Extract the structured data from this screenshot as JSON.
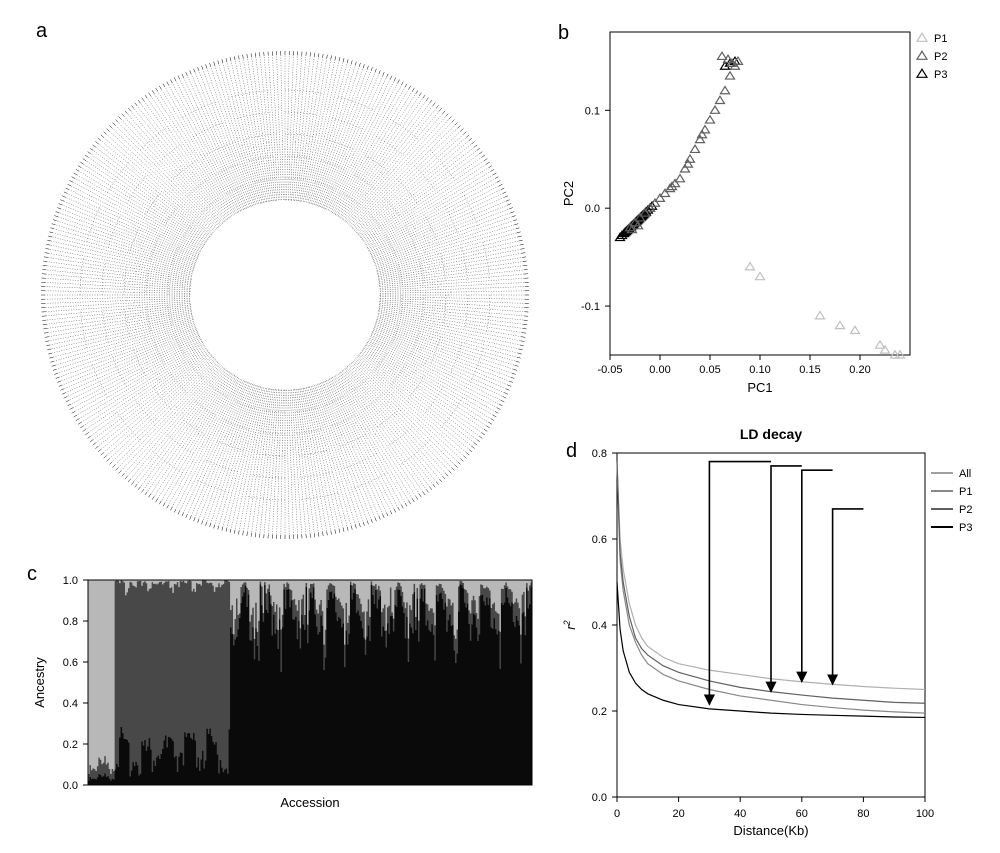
{
  "labels": {
    "a": "a",
    "b": "b",
    "c": "c",
    "d": "d"
  },
  "panel_a": {
    "type": "circular-tree",
    "background_color": "#ffffff",
    "line_color": "#000000",
    "tips": 360
  },
  "panel_b": {
    "type": "scatter",
    "title": "",
    "xlabel": "PC1",
    "ylabel": "PC2",
    "xlim": [
      -0.05,
      0.25
    ],
    "ylim": [
      -0.15,
      0.18
    ],
    "xticks": [
      -0.05,
      0.0,
      0.05,
      0.1,
      0.15,
      0.2
    ],
    "yticks": [
      -0.1,
      0.0,
      0.1
    ],
    "background_color": "#ffffff",
    "border_color": "#000000",
    "marker": "triangle",
    "marker_size": 9,
    "legend": {
      "items": [
        "P1",
        "P2",
        "P3"
      ],
      "colors": [
        "#c0c0c0",
        "#606060",
        "#000000"
      ],
      "position": "right"
    },
    "series": {
      "P1": {
        "color": "#c0c0c0",
        "points": [
          [
            0.09,
            -0.06
          ],
          [
            0.1,
            -0.07
          ],
          [
            0.16,
            -0.11
          ],
          [
            0.18,
            -0.12
          ],
          [
            0.195,
            -0.125
          ],
          [
            0.22,
            -0.14
          ],
          [
            0.225,
            -0.145
          ],
          [
            0.235,
            -0.15
          ],
          [
            0.24,
            -0.15
          ]
        ]
      },
      "P2": {
        "color": "#606060",
        "points": [
          [
            -0.03,
            -0.02
          ],
          [
            -0.025,
            -0.015
          ],
          [
            -0.02,
            -0.01
          ],
          [
            -0.015,
            -0.005
          ],
          [
            -0.01,
            0.0
          ],
          [
            -0.005,
            0.005
          ],
          [
            0.0,
            0.01
          ],
          [
            0.005,
            0.015
          ],
          [
            0.01,
            0.02
          ],
          [
            0.015,
            0.025
          ],
          [
            0.02,
            0.03
          ],
          [
            0.025,
            0.04
          ],
          [
            0.03,
            0.05
          ],
          [
            0.035,
            0.06
          ],
          [
            0.04,
            0.07
          ],
          [
            0.045,
            0.08
          ],
          [
            0.05,
            0.09
          ],
          [
            0.055,
            0.1
          ],
          [
            0.06,
            0.11
          ],
          [
            0.065,
            0.12
          ],
          [
            0.07,
            0.135
          ],
          [
            0.075,
            0.145
          ],
          [
            0.078,
            0.15
          ],
          [
            0.072,
            0.148
          ],
          [
            0.068,
            0.152
          ],
          [
            0.062,
            0.155
          ],
          [
            -0.028,
            -0.022
          ],
          [
            -0.022,
            -0.018
          ],
          [
            0.012,
            0.022
          ],
          [
            0.028,
            0.045
          ],
          [
            0.042,
            0.075
          ]
        ]
      },
      "P3": {
        "color": "#000000",
        "points": [
          [
            -0.035,
            -0.025
          ],
          [
            -0.033,
            -0.023
          ],
          [
            -0.031,
            -0.021
          ],
          [
            -0.029,
            -0.019
          ],
          [
            -0.027,
            -0.017
          ],
          [
            -0.025,
            -0.015
          ],
          [
            -0.023,
            -0.013
          ],
          [
            -0.021,
            -0.011
          ],
          [
            -0.019,
            -0.009
          ],
          [
            -0.017,
            -0.007
          ],
          [
            -0.015,
            -0.005
          ],
          [
            -0.034,
            -0.024
          ],
          [
            -0.032,
            -0.022
          ],
          [
            -0.03,
            -0.02
          ],
          [
            -0.028,
            -0.018
          ],
          [
            -0.026,
            -0.016
          ],
          [
            -0.024,
            -0.014
          ],
          [
            -0.022,
            -0.012
          ],
          [
            -0.02,
            -0.01
          ],
          [
            -0.018,
            -0.008
          ],
          [
            -0.016,
            -0.006
          ],
          [
            -0.036,
            -0.026
          ],
          [
            -0.038,
            -0.028
          ],
          [
            -0.04,
            -0.03
          ],
          [
            -0.014,
            -0.004
          ],
          [
            -0.012,
            -0.002
          ],
          [
            -0.01,
            0.0
          ],
          [
            -0.008,
            0.002
          ],
          [
            0.075,
            0.15
          ],
          [
            0.07,
            0.148
          ],
          [
            0.065,
            0.145
          ]
        ]
      }
    }
  },
  "panel_c": {
    "type": "stacked-bar",
    "xlabel": "Accession",
    "ylabel": "Ancestry",
    "ylim": [
      0,
      1
    ],
    "yticks": [
      0.0,
      0.2,
      0.4,
      0.6,
      0.8,
      1.0
    ],
    "background_color": "#ffffff",
    "border_color": "#000000",
    "n_bars": 300,
    "colors": {
      "p1": "#b8b8b8",
      "p2": "#484848",
      "p3": "#0a0a0a"
    }
  },
  "panel_d": {
    "type": "line",
    "title": "LD decay",
    "xlabel": "Distance(Kb)",
    "ylabel": "r²",
    "ylabel_html": "r<sup>2</sup>",
    "xlim": [
      0,
      100
    ],
    "ylim": [
      0,
      0.8
    ],
    "xticks": [
      0,
      20,
      40,
      60,
      80,
      100
    ],
    "yticks": [
      0.0,
      0.2,
      0.4,
      0.6,
      0.8
    ],
    "background_color": "#ffffff",
    "border_color": "#000000",
    "line_width": 1.2,
    "legend": {
      "items": [
        "All",
        "P1",
        "P2",
        "P3"
      ],
      "colors": [
        "#a0a0a0",
        "#888888",
        "#606060",
        "#000000"
      ],
      "position": "right"
    },
    "series": {
      "All": {
        "color": "#888888",
        "data": [
          [
            0,
            0.78
          ],
          [
            1,
            0.55
          ],
          [
            2,
            0.48
          ],
          [
            4,
            0.4
          ],
          [
            6,
            0.36
          ],
          [
            8,
            0.33
          ],
          [
            10,
            0.31
          ],
          [
            15,
            0.285
          ],
          [
            20,
            0.27
          ],
          [
            30,
            0.25
          ],
          [
            40,
            0.235
          ],
          [
            50,
            0.225
          ],
          [
            60,
            0.215
          ],
          [
            70,
            0.208
          ],
          [
            80,
            0.202
          ],
          [
            90,
            0.198
          ],
          [
            100,
            0.195
          ]
        ]
      },
      "P1": {
        "color": "#b0b0b0",
        "data": [
          [
            0,
            0.78
          ],
          [
            1,
            0.6
          ],
          [
            2,
            0.53
          ],
          [
            4,
            0.45
          ],
          [
            6,
            0.4
          ],
          [
            8,
            0.37
          ],
          [
            10,
            0.35
          ],
          [
            15,
            0.325
          ],
          [
            20,
            0.31
          ],
          [
            30,
            0.295
          ],
          [
            40,
            0.285
          ],
          [
            50,
            0.275
          ],
          [
            60,
            0.268
          ],
          [
            70,
            0.262
          ],
          [
            80,
            0.257
          ],
          [
            90,
            0.253
          ],
          [
            100,
            0.25
          ]
        ]
      },
      "P2": {
        "color": "#606060",
        "data": [
          [
            0,
            0.78
          ],
          [
            1,
            0.57
          ],
          [
            2,
            0.5
          ],
          [
            4,
            0.42
          ],
          [
            6,
            0.37
          ],
          [
            8,
            0.345
          ],
          [
            10,
            0.33
          ],
          [
            15,
            0.305
          ],
          [
            20,
            0.29
          ],
          [
            30,
            0.27
          ],
          [
            40,
            0.255
          ],
          [
            50,
            0.245
          ],
          [
            60,
            0.237
          ],
          [
            70,
            0.23
          ],
          [
            80,
            0.225
          ],
          [
            90,
            0.22
          ],
          [
            100,
            0.218
          ]
        ]
      },
      "P3": {
        "color": "#000000",
        "data": [
          [
            0,
            0.5
          ],
          [
            1,
            0.39
          ],
          [
            2,
            0.34
          ],
          [
            4,
            0.29
          ],
          [
            6,
            0.265
          ],
          [
            8,
            0.25
          ],
          [
            10,
            0.24
          ],
          [
            15,
            0.225
          ],
          [
            20,
            0.215
          ],
          [
            30,
            0.205
          ],
          [
            40,
            0.2
          ],
          [
            50,
            0.195
          ],
          [
            60,
            0.192
          ],
          [
            70,
            0.19
          ],
          [
            80,
            0.188
          ],
          [
            90,
            0.186
          ],
          [
            100,
            0.185
          ]
        ]
      }
    },
    "arrows": [
      {
        "from": [
          50,
          0.78
        ],
        "to": [
          30,
          0.215
        ],
        "label": ""
      },
      {
        "from": [
          60,
          0.77
        ],
        "to": [
          50,
          0.245
        ],
        "label": ""
      },
      {
        "from": [
          70,
          0.76
        ],
        "to": [
          60,
          0.268
        ],
        "label": ""
      },
      {
        "from": [
          80,
          0.67
        ],
        "to": [
          70,
          0.262
        ],
        "label": ""
      }
    ]
  }
}
